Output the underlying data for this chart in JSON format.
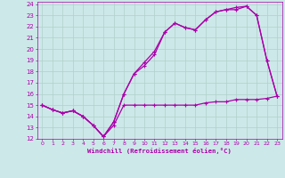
{
  "background_color": "#cde8e8",
  "grid_color": "#b0d0cc",
  "line_color": "#aa00aa",
  "xlim": [
    -0.5,
    23.5
  ],
  "ylim": [
    12,
    24.2
  ],
  "xlabel": "Windchill (Refroidissement éolien,°C)",
  "xticks": [
    0,
    1,
    2,
    3,
    4,
    5,
    6,
    7,
    8,
    9,
    10,
    11,
    12,
    13,
    14,
    15,
    16,
    17,
    18,
    19,
    20,
    21,
    22,
    23
  ],
  "yticks": [
    12,
    13,
    14,
    15,
    16,
    17,
    18,
    19,
    20,
    21,
    22,
    23,
    24
  ],
  "curve1_x": [
    0,
    1,
    2,
    3,
    4,
    5,
    6,
    7,
    8,
    9,
    10,
    11,
    12,
    13,
    14,
    15,
    16,
    17,
    18,
    19,
    20,
    21,
    22,
    23
  ],
  "curve1_y": [
    15.0,
    14.6,
    14.3,
    14.5,
    14.0,
    13.2,
    12.2,
    13.2,
    15.0,
    15.0,
    15.0,
    15.0,
    15.0,
    15.0,
    15.0,
    15.0,
    15.2,
    15.3,
    15.3,
    15.5,
    15.5,
    15.5,
    15.6,
    15.8
  ],
  "curve2_x": [
    0,
    1,
    2,
    3,
    4,
    5,
    6,
    7,
    8,
    9,
    10,
    11,
    12,
    13,
    14,
    15,
    16,
    17,
    18,
    19,
    20,
    21,
    22,
    23
  ],
  "curve2_y": [
    15.0,
    14.6,
    14.3,
    14.5,
    14.0,
    13.2,
    12.2,
    13.5,
    16.0,
    17.8,
    18.5,
    19.5,
    21.5,
    22.3,
    21.9,
    21.7,
    22.6,
    23.3,
    23.5,
    23.7,
    23.8,
    23.0,
    19.0,
    15.8
  ],
  "curve3_x": [
    0,
    1,
    2,
    3,
    4,
    5,
    6,
    7,
    8,
    9,
    10,
    11,
    12,
    13,
    14,
    15,
    16,
    17,
    18,
    19,
    20,
    21,
    22,
    23
  ],
  "curve3_y": [
    15.0,
    14.6,
    14.3,
    14.5,
    14.0,
    13.2,
    12.2,
    13.5,
    16.0,
    17.8,
    18.8,
    19.8,
    21.5,
    22.3,
    21.9,
    21.7,
    22.6,
    23.3,
    23.5,
    23.5,
    23.8,
    23.0,
    19.0,
    15.8
  ],
  "marker": "+",
  "markersize": 3.5,
  "linewidth": 0.9
}
